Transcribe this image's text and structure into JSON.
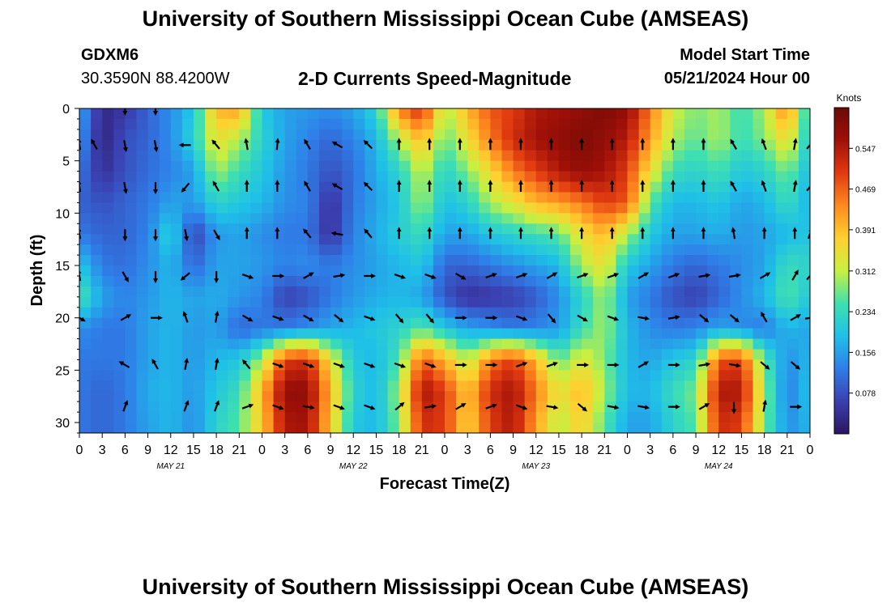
{
  "header": {
    "title": "University of Southern Mississippi Ocean Cube (AMSEAS)",
    "station_id": "GDXM6",
    "coordinates": "30.3590N  88.4200W",
    "plot_title": "2-D Currents Speed-Magnitude",
    "model_start_label": "Model Start Time",
    "model_start_value": "05/21/2024 Hour 00"
  },
  "footer": {
    "title": "University of Southern Mississippi Ocean Cube (AMSEAS)"
  },
  "chart_data": {
    "type": "heatmap",
    "title": "2-D Currents Speed-Magnitude",
    "xlabel": "Forecast Time(Z)",
    "ylabel": "Depth (ft)",
    "x_hours_range": [
      0,
      96
    ],
    "ylim": [
      0,
      31
    ],
    "y_inverted": true,
    "x_tick_labels": [
      "0",
      "3",
      "6",
      "9",
      "12",
      "15",
      "18",
      "21",
      "0",
      "3",
      "6",
      "9",
      "12",
      "15",
      "18",
      "21",
      "0",
      "3",
      "6",
      "9",
      "12",
      "15",
      "18",
      "21",
      "0",
      "3",
      "6",
      "9",
      "12",
      "15",
      "18",
      "21",
      "0"
    ],
    "y_ticks": [
      0,
      5,
      10,
      15,
      20,
      25,
      30
    ],
    "y_tick_labels": [
      "0",
      "5",
      "10",
      "15",
      "20",
      "25",
      "30"
    ],
    "date_labels": [
      {
        "hour": 12,
        "label": "MAY 21"
      },
      {
        "hour": 36,
        "label": "MAY 22"
      },
      {
        "hour": 60,
        "label": "MAY 23"
      },
      {
        "hour": 84,
        "label": "MAY 24"
      }
    ],
    "colorbar": {
      "label": "Knots",
      "min": 0.0,
      "max": 0.625,
      "ticks": [
        0.547,
        0.469,
        0.391,
        0.312,
        0.234,
        0.156,
        0.078
      ],
      "tick_labels": [
        "0.547",
        "0.469",
        "0.391",
        "0.312",
        "0.234",
        "0.156",
        "0.078"
      ],
      "colors": [
        "#2a1660",
        "#3b3fb0",
        "#2f7ee8",
        "#1fc0e8",
        "#3fe0b0",
        "#c8f040",
        "#ffd030",
        "#ff8a20",
        "#e03a10",
        "#a01008",
        "#6a0a06"
      ]
    },
    "speed_depths": [
      0,
      3,
      6,
      9,
      12,
      15,
      18,
      21,
      24,
      27,
      30
    ],
    "speed_hours": [
      0,
      3,
      6,
      9,
      12,
      15,
      18,
      21,
      24,
      27,
      30,
      33,
      36,
      39,
      42,
      45,
      48,
      51,
      54,
      57,
      60,
      63,
      66,
      69,
      72,
      75,
      78,
      81,
      84,
      87,
      90,
      93,
      96
    ],
    "speed_knots": [
      [
        0.17,
        0.03,
        0.05,
        0.1,
        0.14,
        0.2,
        0.4,
        0.42,
        0.2,
        0.16,
        0.15,
        0.14,
        0.16,
        0.22,
        0.45,
        0.52,
        0.3,
        0.4,
        0.48,
        0.5,
        0.55,
        0.56,
        0.58,
        0.6,
        0.58,
        0.45,
        0.32,
        0.28,
        0.3,
        0.24,
        0.3,
        0.45,
        0.2
      ],
      [
        0.15,
        0.02,
        0.08,
        0.1,
        0.14,
        0.22,
        0.35,
        0.3,
        0.22,
        0.16,
        0.13,
        0.1,
        0.13,
        0.18,
        0.3,
        0.4,
        0.26,
        0.35,
        0.45,
        0.52,
        0.56,
        0.58,
        0.6,
        0.58,
        0.54,
        0.42,
        0.3,
        0.26,
        0.3,
        0.24,
        0.28,
        0.36,
        0.2
      ],
      [
        0.12,
        0.04,
        0.08,
        0.11,
        0.13,
        0.16,
        0.3,
        0.24,
        0.2,
        0.15,
        0.12,
        0.08,
        0.11,
        0.17,
        0.22,
        0.32,
        0.22,
        0.28,
        0.36,
        0.45,
        0.5,
        0.55,
        0.58,
        0.56,
        0.5,
        0.35,
        0.24,
        0.22,
        0.25,
        0.2,
        0.22,
        0.28,
        0.18
      ],
      [
        0.1,
        0.08,
        0.1,
        0.12,
        0.16,
        0.15,
        0.22,
        0.2,
        0.18,
        0.14,
        0.13,
        0.04,
        0.12,
        0.16,
        0.2,
        0.3,
        0.19,
        0.22,
        0.3,
        0.34,
        0.4,
        0.42,
        0.45,
        0.5,
        0.48,
        0.26,
        0.18,
        0.18,
        0.2,
        0.16,
        0.18,
        0.24,
        0.17
      ],
      [
        0.12,
        0.1,
        0.1,
        0.13,
        0.22,
        0.06,
        0.15,
        0.16,
        0.14,
        0.12,
        0.12,
        0.04,
        0.13,
        0.17,
        0.21,
        0.24,
        0.16,
        0.16,
        0.2,
        0.22,
        0.24,
        0.26,
        0.35,
        0.4,
        0.3,
        0.2,
        0.16,
        0.16,
        0.17,
        0.15,
        0.16,
        0.18,
        0.2
      ],
      [
        0.2,
        0.12,
        0.11,
        0.14,
        0.18,
        0.1,
        0.16,
        0.16,
        0.15,
        0.13,
        0.14,
        0.12,
        0.14,
        0.16,
        0.18,
        0.2,
        0.1,
        0.1,
        0.12,
        0.14,
        0.16,
        0.18,
        0.3,
        0.35,
        0.2,
        0.16,
        0.12,
        0.1,
        0.12,
        0.14,
        0.16,
        0.24,
        0.22
      ],
      [
        0.26,
        0.16,
        0.13,
        0.15,
        0.18,
        0.16,
        0.17,
        0.15,
        0.13,
        0.06,
        0.08,
        0.12,
        0.15,
        0.17,
        0.18,
        0.16,
        0.08,
        0.04,
        0.05,
        0.06,
        0.09,
        0.14,
        0.22,
        0.3,
        0.16,
        0.12,
        0.08,
        0.06,
        0.1,
        0.14,
        0.18,
        0.26,
        0.2
      ],
      [
        0.14,
        0.12,
        0.12,
        0.16,
        0.18,
        0.15,
        0.16,
        0.1,
        0.12,
        0.12,
        0.14,
        0.16,
        0.18,
        0.2,
        0.22,
        0.26,
        0.2,
        0.16,
        0.14,
        0.12,
        0.13,
        0.15,
        0.24,
        0.3,
        0.18,
        0.14,
        0.12,
        0.13,
        0.16,
        0.14,
        0.12,
        0.18,
        0.16
      ],
      [
        0.12,
        0.12,
        0.12,
        0.16,
        0.18,
        0.15,
        0.18,
        0.2,
        0.3,
        0.5,
        0.52,
        0.35,
        0.2,
        0.18,
        0.25,
        0.48,
        0.4,
        0.3,
        0.45,
        0.5,
        0.4,
        0.26,
        0.34,
        0.28,
        0.18,
        0.16,
        0.2,
        0.22,
        0.48,
        0.5,
        0.26,
        0.14,
        0.18
      ],
      [
        0.12,
        0.1,
        0.12,
        0.17,
        0.18,
        0.15,
        0.2,
        0.24,
        0.4,
        0.58,
        0.58,
        0.4,
        0.22,
        0.18,
        0.3,
        0.56,
        0.5,
        0.38,
        0.52,
        0.56,
        0.45,
        0.34,
        0.4,
        0.3,
        0.18,
        0.18,
        0.24,
        0.28,
        0.55,
        0.55,
        0.3,
        0.12,
        0.2
      ],
      [
        0.12,
        0.1,
        0.12,
        0.16,
        0.18,
        0.14,
        0.22,
        0.26,
        0.38,
        0.55,
        0.56,
        0.38,
        0.2,
        0.18,
        0.28,
        0.52,
        0.5,
        0.36,
        0.5,
        0.55,
        0.42,
        0.3,
        0.38,
        0.26,
        0.16,
        0.16,
        0.22,
        0.26,
        0.52,
        0.5,
        0.28,
        0.14,
        0.18
      ]
    ],
    "arrow_depths": [
      0,
      3.5,
      7.5,
      12,
      16,
      20,
      24.5,
      28.5
    ],
    "arrow_hours": [
      0,
      2,
      4,
      6,
      8,
      10,
      12,
      14,
      16,
      18,
      20,
      22,
      24,
      26,
      28,
      30,
      32,
      34,
      36,
      38,
      40,
      42,
      44,
      46,
      48,
      50,
      52,
      54,
      56,
      58,
      60,
      62,
      64,
      66,
      68,
      70,
      72,
      74,
      76,
      78,
      80,
      82,
      84,
      86,
      88,
      90,
      92,
      94,
      96
    ],
    "arrow_directions_deg": [
      [
        null,
        null,
        null,
        180,
        null,
        180,
        null,
        null,
        null,
        null,
        null,
        null,
        null,
        null,
        null,
        null,
        null,
        null,
        null,
        null,
        null,
        null,
        null,
        null,
        null,
        null,
        null,
        null,
        null,
        null,
        null,
        null,
        null,
        null,
        null,
        null,
        null,
        null,
        null,
        null,
        null,
        null,
        null,
        null,
        null,
        null,
        null,
        null,
        null
      ],
      [
        350,
        330,
        null,
        170,
        null,
        170,
        null,
        270,
        null,
        320,
        null,
        350,
        null,
        5,
        null,
        330,
        null,
        300,
        null,
        315,
        null,
        0,
        null,
        0,
        null,
        0,
        null,
        0,
        null,
        0,
        null,
        0,
        null,
        0,
        null,
        0,
        null,
        0,
        null,
        0,
        null,
        0,
        null,
        330,
        null,
        340,
        null,
        10,
        40
      ],
      [
        350,
        null,
        null,
        170,
        null,
        180,
        null,
        220,
        null,
        330,
        null,
        0,
        null,
        0,
        null,
        330,
        null,
        300,
        null,
        315,
        null,
        0,
        null,
        0,
        null,
        0,
        null,
        0,
        null,
        0,
        null,
        0,
        null,
        0,
        null,
        0,
        null,
        0,
        null,
        0,
        null,
        0,
        null,
        330,
        null,
        340,
        null,
        10,
        40
      ],
      [
        350,
        null,
        null,
        180,
        null,
        180,
        null,
        170,
        null,
        150,
        null,
        0,
        null,
        0,
        null,
        320,
        null,
        280,
        null,
        320,
        null,
        0,
        null,
        0,
        null,
        0,
        null,
        0,
        null,
        0,
        null,
        0,
        null,
        0,
        null,
        0,
        null,
        0,
        null,
        0,
        null,
        0,
        null,
        350,
        null,
        0,
        null,
        0,
        20
      ],
      [
        350,
        null,
        null,
        150,
        null,
        180,
        null,
        230,
        null,
        180,
        null,
        110,
        null,
        90,
        null,
        60,
        null,
        80,
        null,
        90,
        null,
        110,
        null,
        110,
        null,
        120,
        null,
        70,
        null,
        70,
        null,
        60,
        null,
        70,
        null,
        70,
        null,
        60,
        null,
        70,
        null,
        80,
        null,
        80,
        null,
        60,
        null,
        30,
        40
      ],
      [
        120,
        null,
        null,
        60,
        null,
        90,
        null,
        340,
        null,
        10,
        null,
        120,
        null,
        110,
        null,
        120,
        null,
        130,
        null,
        110,
        null,
        140,
        null,
        140,
        null,
        90,
        null,
        90,
        null,
        110,
        null,
        140,
        null,
        120,
        null,
        110,
        null,
        100,
        null,
        80,
        null,
        130,
        null,
        130,
        null,
        330,
        null,
        60,
        80
      ],
      [
        null,
        null,
        null,
        300,
        null,
        330,
        null,
        10,
        null,
        10,
        null,
        320,
        null,
        110,
        null,
        110,
        null,
        110,
        null,
        110,
        null,
        110,
        null,
        110,
        null,
        90,
        null,
        90,
        null,
        70,
        null,
        70,
        null,
        90,
        null,
        90,
        null,
        60,
        null,
        90,
        null,
        80,
        null,
        100,
        null,
        130,
        null,
        130,
        null
      ],
      [
        null,
        null,
        null,
        20,
        null,
        null,
        null,
        20,
        null,
        20,
        null,
        70,
        null,
        110,
        null,
        100,
        null,
        110,
        null,
        110,
        null,
        50,
        null,
        80,
        null,
        60,
        null,
        70,
        null,
        110,
        null,
        100,
        null,
        130,
        null,
        100,
        null,
        100,
        null,
        90,
        null,
        60,
        null,
        180,
        null,
        10,
        null,
        90,
        null
      ]
    ]
  }
}
